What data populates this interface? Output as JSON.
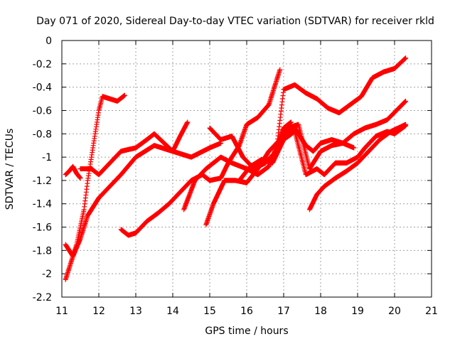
{
  "chart_data": {
    "type": "scatter",
    "title": "Day 071 of 2020, Sidereal Day-to-day VTEC variation (SDTVAR) for receiver rkld",
    "xlabel": "GPS time / hours",
    "ylabel": "SDTVAR / TECUs",
    "xlim": [
      11,
      21
    ],
    "ylim": [
      -2.2,
      0
    ],
    "x_ticks": [
      11,
      12,
      13,
      14,
      15,
      16,
      17,
      18,
      19,
      20,
      21
    ],
    "y_ticks": [
      0,
      -0.2,
      -0.4,
      -0.6,
      -0.8,
      -1,
      -1.2,
      -1.4,
      -1.6,
      -1.8,
      -2,
      -2.2
    ],
    "x_tick_labels": [
      "11",
      "12",
      "13",
      "14",
      "15",
      "16",
      "17",
      "18",
      "19",
      "20",
      "21"
    ],
    "y_tick_labels": [
      "0",
      "-0.2",
      "-0.4",
      "-0.6",
      "-0.8",
      "-1",
      "-1.2",
      "-1.4",
      "-1.6",
      "-1.8",
      "-2",
      "-2.2"
    ],
    "grid": true,
    "marker": "+",
    "color": "#ff0000",
    "series": [
      {
        "x": [
          11.1,
          11.2,
          11.3,
          11.4,
          11.5
        ],
        "y": [
          -1.15,
          -1.12,
          -1.08,
          -1.14,
          -1.18
        ]
      },
      {
        "x": [
          11.1,
          11.2,
          11.3,
          11.4,
          11.5,
          11.6,
          11.7,
          11.8,
          11.9,
          12.0,
          12.1,
          12.3,
          12.5,
          12.7
        ],
        "y": [
          -2.05,
          -1.95,
          -1.85,
          -1.75,
          -1.6,
          -1.45,
          -1.2,
          -1.0,
          -0.8,
          -0.6,
          -0.48,
          -0.5,
          -0.52,
          -0.47
        ]
      },
      {
        "x": [
          11.1,
          11.3,
          11.5,
          11.7,
          12.0,
          12.3,
          12.6,
          13.0,
          13.5,
          14.0,
          14.2,
          14.4
        ],
        "y": [
          -1.75,
          -1.85,
          -1.7,
          -1.5,
          -1.35,
          -1.25,
          -1.15,
          -1.0,
          -0.9,
          -0.95,
          -0.82,
          -0.7
        ]
      },
      {
        "x": [
          11.5,
          11.8,
          12.0,
          12.3,
          12.6,
          13.0,
          13.3,
          13.5,
          14.0,
          14.5,
          15.0,
          15.3
        ],
        "y": [
          -1.1,
          -1.1,
          -1.15,
          -1.05,
          -0.95,
          -0.92,
          -0.85,
          -0.8,
          -0.95,
          -1.0,
          -0.92,
          -0.88
        ]
      },
      {
        "x": [
          12.6,
          12.8,
          13.0,
          13.3,
          13.6,
          13.9,
          14.2,
          14.5,
          14.8,
          15.0,
          15.3,
          15.5,
          15.8,
          16.0,
          16.3,
          16.6,
          16.9
        ],
        "y": [
          -1.62,
          -1.67,
          -1.65,
          -1.55,
          -1.48,
          -1.4,
          -1.3,
          -1.2,
          -1.15,
          -1.2,
          -1.18,
          -1.05,
          -0.9,
          -0.72,
          -0.66,
          -0.55,
          -0.25
        ]
      },
      {
        "x": [
          14.3,
          14.6,
          14.9,
          15.3,
          15.6,
          16.0,
          16.3,
          16.6,
          17.0,
          17.2
        ],
        "y": [
          -1.45,
          -1.2,
          -1.1,
          -1.0,
          -1.05,
          -1.1,
          -1.15,
          -1.08,
          -0.75,
          -0.7
        ]
      },
      {
        "x": [
          14.9,
          15.1,
          15.4,
          15.7,
          16.0,
          16.3,
          16.6,
          16.9,
          17.1,
          17.3,
          17.6,
          17.8,
          18.0,
          18.3,
          18.6,
          18.9
        ],
        "y": [
          -1.58,
          -1.4,
          -1.2,
          -1.2,
          -1.22,
          -1.1,
          -0.95,
          -0.85,
          -0.78,
          -0.75,
          -0.9,
          -0.95,
          -0.88,
          -0.85,
          -0.88,
          -0.92
        ]
      },
      {
        "x": [
          15.0,
          15.3,
          15.6,
          15.9,
          16.2,
          16.5,
          16.8,
          17.1,
          17.4,
          17.7,
          18.0,
          18.3,
          18.6,
          18.9,
          19.2,
          19.5,
          19.8,
          20.3
        ],
        "y": [
          -0.75,
          -0.85,
          -0.82,
          -1.0,
          -1.1,
          -1.05,
          -0.95,
          -0.75,
          -0.72,
          -1.1,
          -0.95,
          -0.9,
          -0.88,
          -0.8,
          -0.75,
          -0.72,
          -0.68,
          -0.52
        ]
      },
      {
        "x": [
          15.8,
          16.1,
          16.4,
          16.7,
          17.0,
          17.3,
          17.6,
          17.9,
          18.1,
          18.4,
          18.7,
          19.0,
          19.2,
          19.5,
          19.8,
          20.0,
          20.3
        ],
        "y": [
          -1.2,
          -1.08,
          -1.02,
          -1.05,
          -0.85,
          -0.78,
          -1.15,
          -1.1,
          -1.15,
          -1.05,
          -1.05,
          -1.0,
          -0.92,
          -0.82,
          -0.78,
          -0.8,
          -0.73
        ]
      },
      {
        "x": [
          16.2,
          16.5,
          16.8,
          17.0,
          17.3,
          17.6,
          17.9,
          18.2,
          18.5,
          18.8,
          19.1,
          19.4,
          19.7,
          20.0,
          20.3
        ],
        "y": [
          -1.1,
          -1.05,
          -0.95,
          -0.42,
          -0.38,
          -0.45,
          -0.5,
          -0.58,
          -0.62,
          -0.55,
          -0.48,
          -0.32,
          -0.27,
          -0.24,
          -0.15
        ]
      },
      {
        "x": [
          17.7,
          17.9,
          18.1,
          18.4,
          18.7,
          19.0,
          19.3,
          19.6,
          19.9,
          20.1,
          20.3
        ],
        "y": [
          -1.45,
          -1.32,
          -1.25,
          -1.18,
          -1.12,
          -1.05,
          -0.95,
          -0.85,
          -0.78,
          -0.75,
          -0.72
        ]
      }
    ]
  }
}
